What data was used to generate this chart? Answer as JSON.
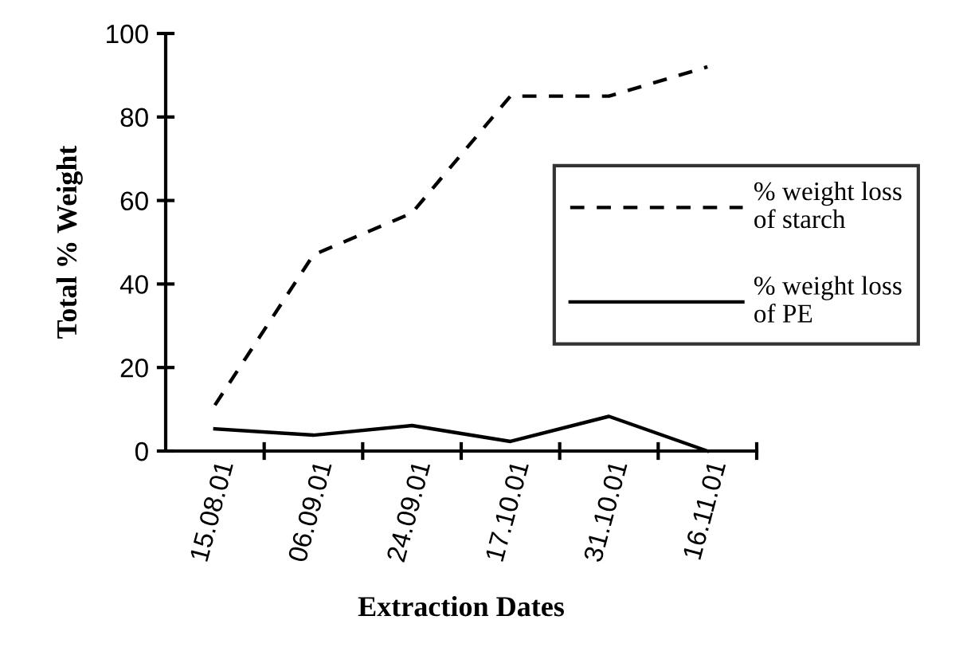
{
  "chart_data": {
    "type": "line",
    "xlabel": "Extraction Dates",
    "ylabel": "Total % Weight",
    "categories": [
      "15.08.01",
      "06.09.01",
      "24.09.01",
      "17.10.01",
      "31.10.01",
      "16.11.01"
    ],
    "ylim": [
      0,
      100
    ],
    "yticks": [
      0,
      20,
      40,
      60,
      80,
      100
    ],
    "grid": false,
    "legend": "right",
    "marker": "none",
    "series": [
      {
        "name": "% weight loss\nof starch",
        "color": "#000000",
        "line_style": "dashed",
        "values": [
          11,
          47,
          57,
          85,
          85,
          92
        ]
      },
      {
        "name": "% weight loss\nof PE",
        "color": "#000000",
        "line_style": "solid",
        "values": [
          5.3,
          3.8,
          6.1,
          2.3,
          8.3,
          0
        ]
      }
    ]
  }
}
